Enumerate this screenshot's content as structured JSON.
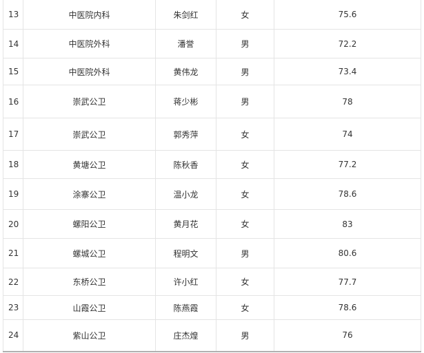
{
  "rows": [
    {
      "no": "13",
      "unit": "中医院内科",
      "name": "朱剑红",
      "gender": "女",
      "score": "75.6"
    },
    {
      "no": "14",
      "unit": "中医院外科",
      "name": "潘誉",
      "gender": "男",
      "score": "72.2"
    },
    {
      "no": "15",
      "unit": "中医院外科",
      "name": "黄伟龙",
      "gender": "男",
      "score": "73.4"
    },
    {
      "no": "16",
      "unit": "崇武公卫",
      "name": "蒋少彬",
      "gender": "男",
      "score": "78"
    },
    {
      "no": "17",
      "unit": "崇武公卫",
      "name": "郭秀萍",
      "gender": "女",
      "score": "74"
    },
    {
      "no": "18",
      "unit": "黄塘公卫",
      "name": "陈秋香",
      "gender": "女",
      "score": "77.2"
    },
    {
      "no": "19",
      "unit": "涂寨公卫",
      "name": "温小龙",
      "gender": "女",
      "score": "78.6"
    },
    {
      "no": "20",
      "unit": "螺阳公卫",
      "name": "黄月花",
      "gender": "女",
      "score": "83"
    },
    {
      "no": "21",
      "unit": "螺城公卫",
      "name": "程明文",
      "gender": "男",
      "score": "80.6"
    },
    {
      "no": "22",
      "unit": "东桥公卫",
      "name": "许小红",
      "gender": "女",
      "score": "77.7"
    },
    {
      "no": "23",
      "unit": "山霞公卫",
      "name": "陈燕霞",
      "gender": "女",
      "score": "78.6"
    },
    {
      "no": "24",
      "unit": "紫山公卫",
      "name": "庄杰煌",
      "gender": "男",
      "score": "76"
    }
  ]
}
